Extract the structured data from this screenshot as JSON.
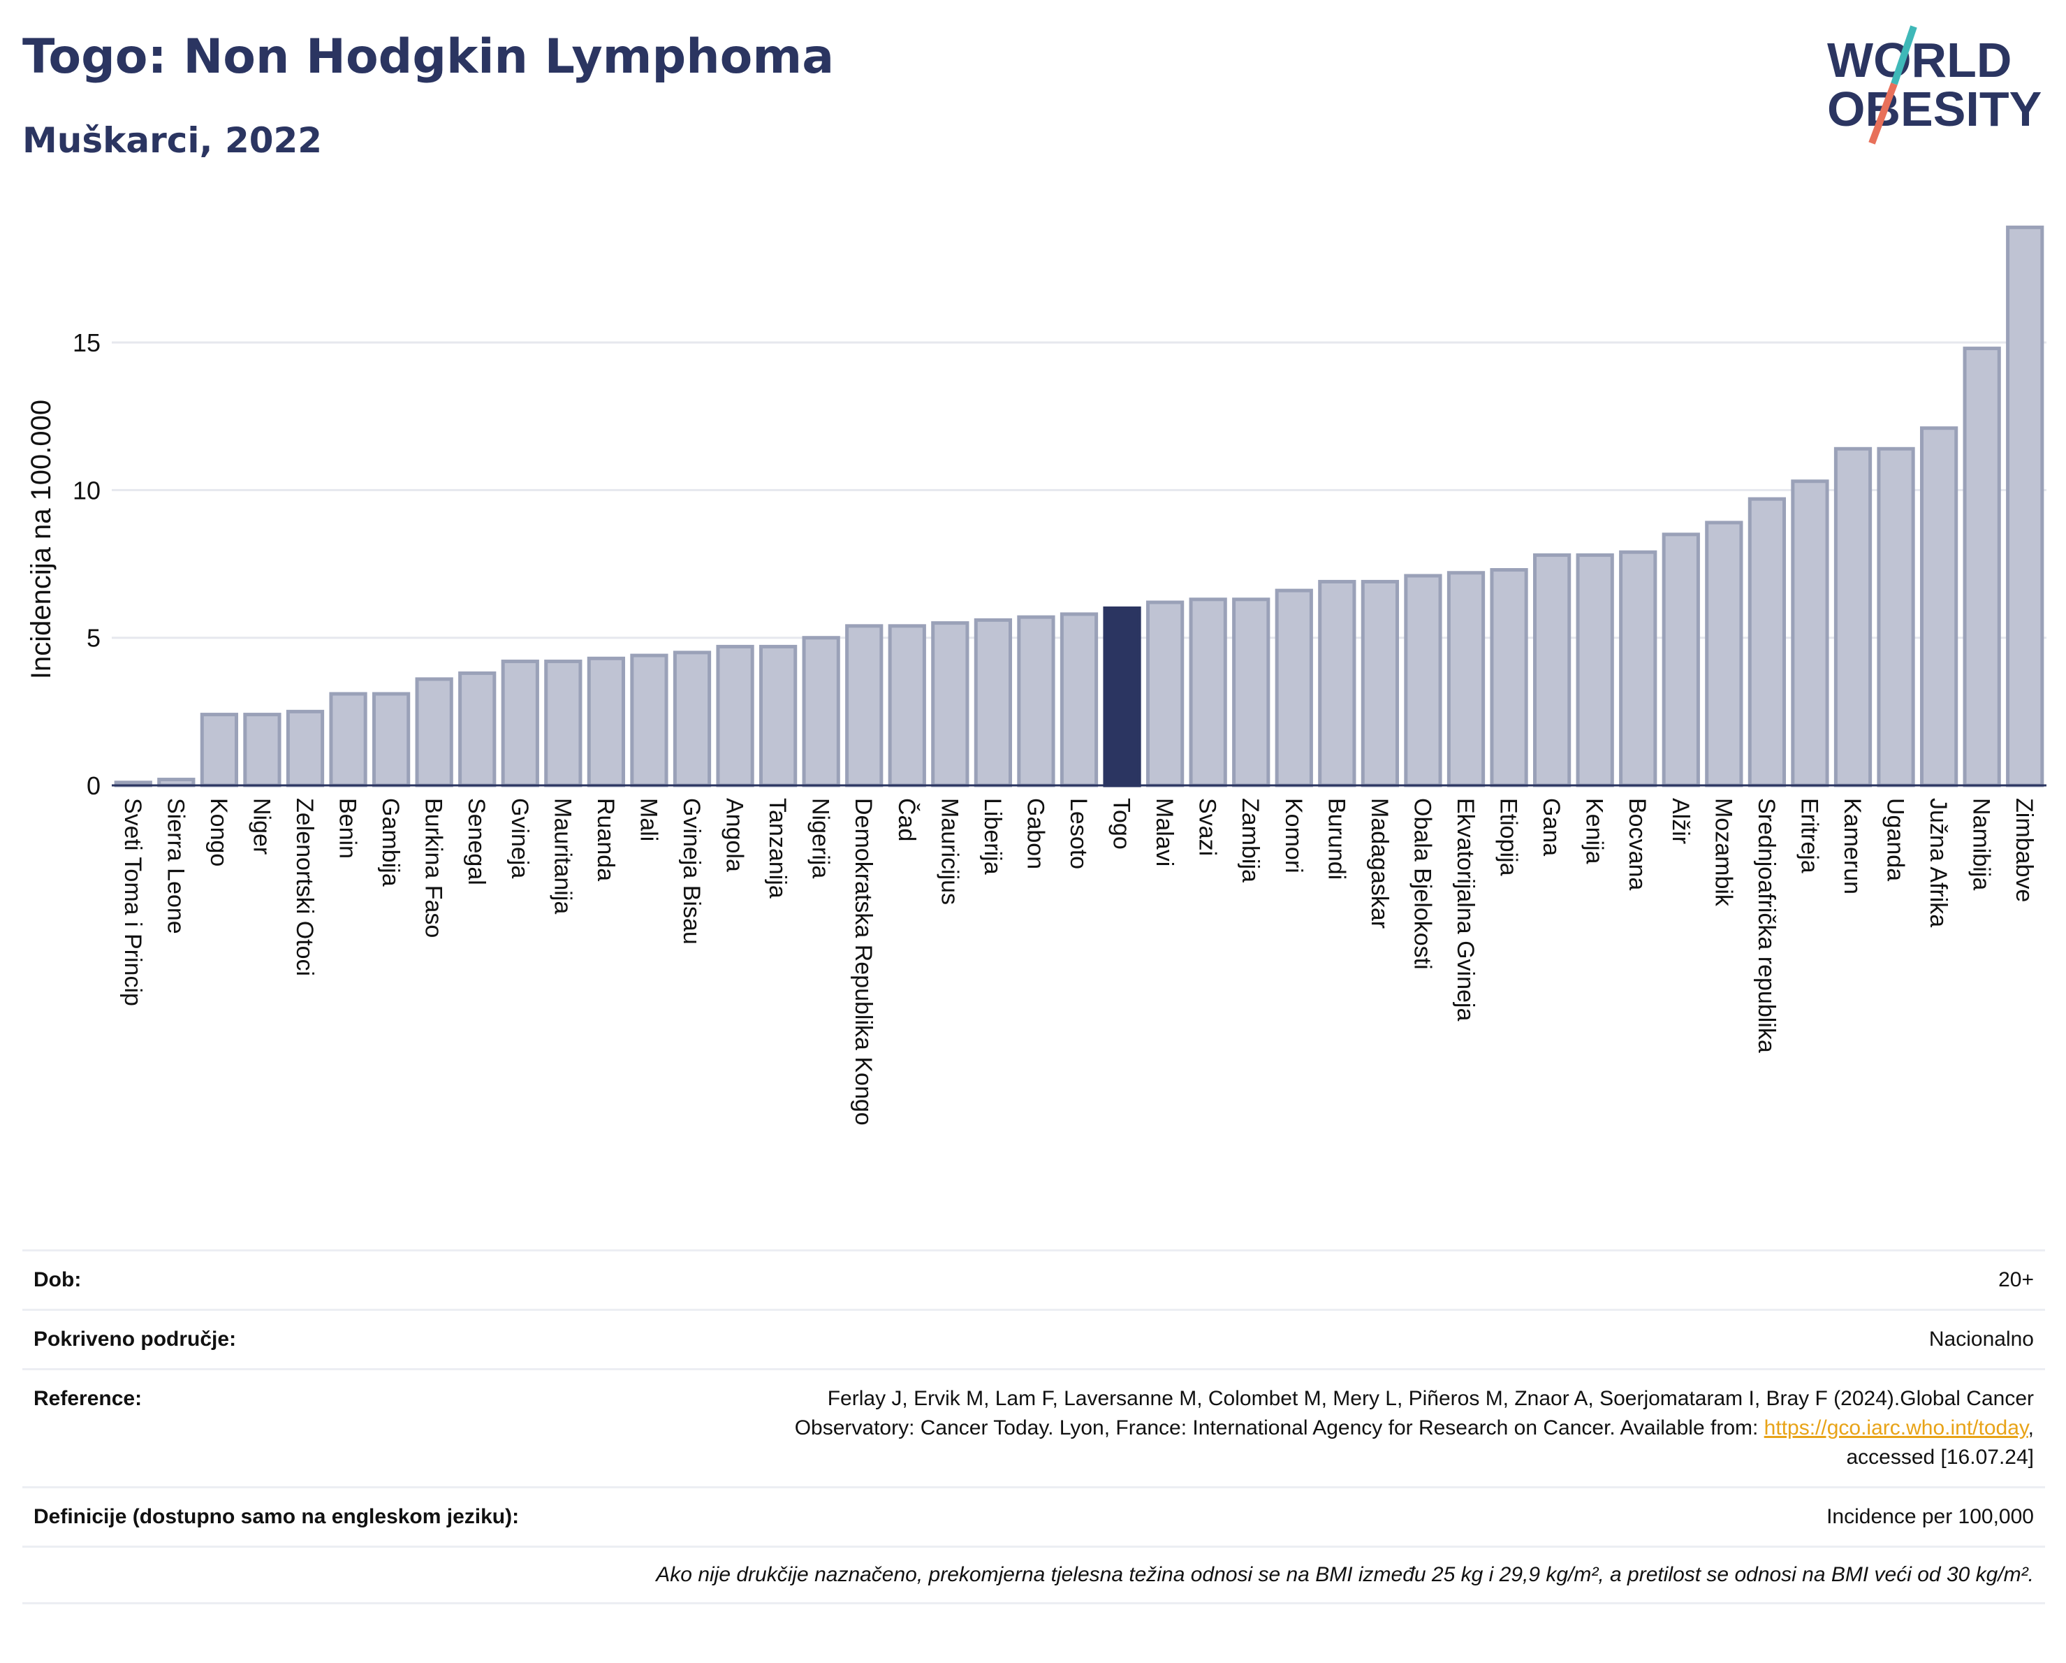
{
  "header": {
    "title": "Togo: Non Hodgkin Lymphoma",
    "subtitle": "Muškarci, 2022",
    "logo_line1": "WORLD",
    "logo_line2": "OBESITY"
  },
  "chart_data": {
    "type": "bar",
    "ylabel": "Incidencija na 100.000",
    "xlabel": "",
    "ylim": [
      0,
      19.5
    ],
    "yticks": [
      0,
      5,
      10,
      15
    ],
    "highlight": "Togo",
    "colors": {
      "bar": "#bfc3d3",
      "bar_edge": "#9aa1b8",
      "highlight": "#2b3561",
      "axis": "#2b3561",
      "grid": "#e6e8ee"
    },
    "categories": [
      "Sveti Toma i Princip",
      "Sierra Leone",
      "Kongo",
      "Niger",
      "Zelenortski Otoci",
      "Benin",
      "Gambija",
      "Burkina Faso",
      "Senegal",
      "Gvineja",
      "Mauritanija",
      "Ruanda",
      "Mali",
      "Gvineja Bisau",
      "Angola",
      "Tanzanija",
      "Nigerija",
      "Demokratska Republika Kongo",
      "Čad",
      "Mauricijus",
      "Liberija",
      "Gabon",
      "Lesoto",
      "Togo",
      "Malavi",
      "Svazi",
      "Zambija",
      "Komori",
      "Burundi",
      "Madagaskar",
      "Obala Bjelokosti",
      "Ekvatorijalna Gvineja",
      "Etiopija",
      "Gana",
      "Kenija",
      "Bocvana",
      "Alžir",
      "Mozambik",
      "Srednjoafrička republika",
      "Eritreja",
      "Kamerun",
      "Uganda",
      "Južna Afrika",
      "Namibija",
      "Zimbabve"
    ],
    "values": [
      0.1,
      0.2,
      2.4,
      2.4,
      2.5,
      3.1,
      3.1,
      3.6,
      3.8,
      4.2,
      4.2,
      4.3,
      4.4,
      4.5,
      4.7,
      4.7,
      5.0,
      5.4,
      5.4,
      5.5,
      5.6,
      5.7,
      5.8,
      6.0,
      6.2,
      6.3,
      6.3,
      6.6,
      6.9,
      6.9,
      7.1,
      7.2,
      7.3,
      7.8,
      7.8,
      7.9,
      8.5,
      8.9,
      9.7,
      10.3,
      11.4,
      11.4,
      12.1,
      14.8,
      18.9
    ]
  },
  "info": {
    "dob_label": "Dob:",
    "dob_value": "20+",
    "area_label": "Pokriveno područje:",
    "area_value": "Nacionalno",
    "ref_label": "Reference:",
    "ref_text_1": "Ferlay J, Ervik M, Lam F, Laversanne M, Colombet M, Mery L, Piñeros M, Znaor A, Soerjomataram I, Bray F (2024).Global Cancer",
    "ref_text_2": "Observatory: Cancer Today. Lyon, France: International Agency for Research on Cancer. Available from: ",
    "ref_link": "https://gco.iarc.who.int/today",
    "ref_text_3": ",",
    "ref_text_4": "accessed [16.07.24]",
    "def_label": "Definicije (dostupno samo na engleskom jeziku):",
    "def_value": "Incidence per 100,000",
    "note": "Ako nije drukčije naznačeno, prekomjerna tjelesna težina odnosi se na BMI između 25 kg i 29,9 kg/m², a pretilost se odnosi na BMI veći od 30 kg/m²."
  }
}
